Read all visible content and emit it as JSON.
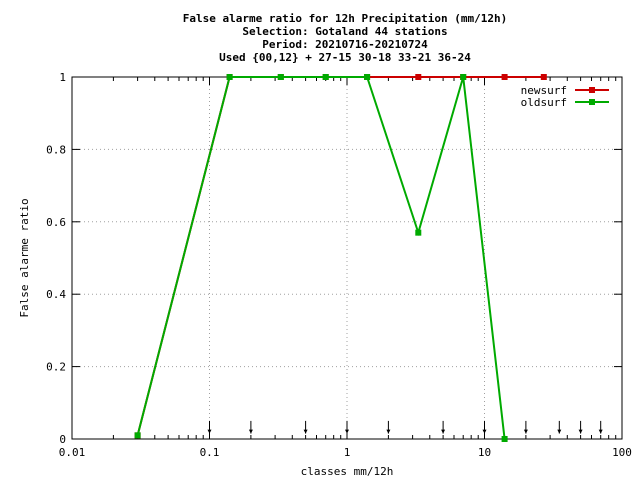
{
  "chart_data": {
    "type": "line",
    "title_lines": [
      "False alarme ratio  for 12h Precipitation (mm/12h)",
      "Selection: Gotaland     44 stations",
      "Period: 20210716-20210724",
      "Used {00,12} + 27-15 30-18 33-21 36-24"
    ],
    "xlabel": "classes mm/12h",
    "ylabel": "False alarme ratio",
    "x_scale": "log",
    "xlim": [
      0.01,
      100
    ],
    "ylim": [
      0,
      1
    ],
    "x_ticks": [
      {
        "value": 0.01,
        "label": "0.01"
      },
      {
        "value": 0.1,
        "label": "0.1"
      },
      {
        "value": 1,
        "label": "1"
      },
      {
        "value": 10,
        "label": "10"
      },
      {
        "value": 100,
        "label": "100"
      }
    ],
    "y_ticks": [
      {
        "value": 0,
        "label": "0"
      },
      {
        "value": 0.2,
        "label": "0.2"
      },
      {
        "value": 0.4,
        "label": "0.4"
      },
      {
        "value": 0.6,
        "label": "0.6"
      },
      {
        "value": 0.8,
        "label": "0.8"
      },
      {
        "value": 1,
        "label": "1"
      }
    ],
    "grid": true,
    "legend_position": "top-right",
    "series": [
      {
        "name": "newsurf",
        "color": "#cc0000",
        "x": [
          0.03,
          0.14,
          0.33,
          0.7,
          1.4,
          3.3,
          7,
          14,
          27
        ],
        "y": [
          0.01,
          1,
          1,
          1,
          1,
          1,
          1,
          1,
          1
        ]
      },
      {
        "name": "oldsurf",
        "color": "#00aa00",
        "x": [
          0.03,
          0.14,
          0.33,
          0.7,
          1.4,
          3.3,
          7,
          14
        ],
        "y": [
          0.01,
          1,
          1,
          1,
          1,
          0.57,
          1,
          0
        ]
      }
    ],
    "markers_at": [
      0.1,
      0.2,
      0.5,
      1,
      2,
      5,
      10,
      20,
      35,
      50,
      70
    ]
  }
}
